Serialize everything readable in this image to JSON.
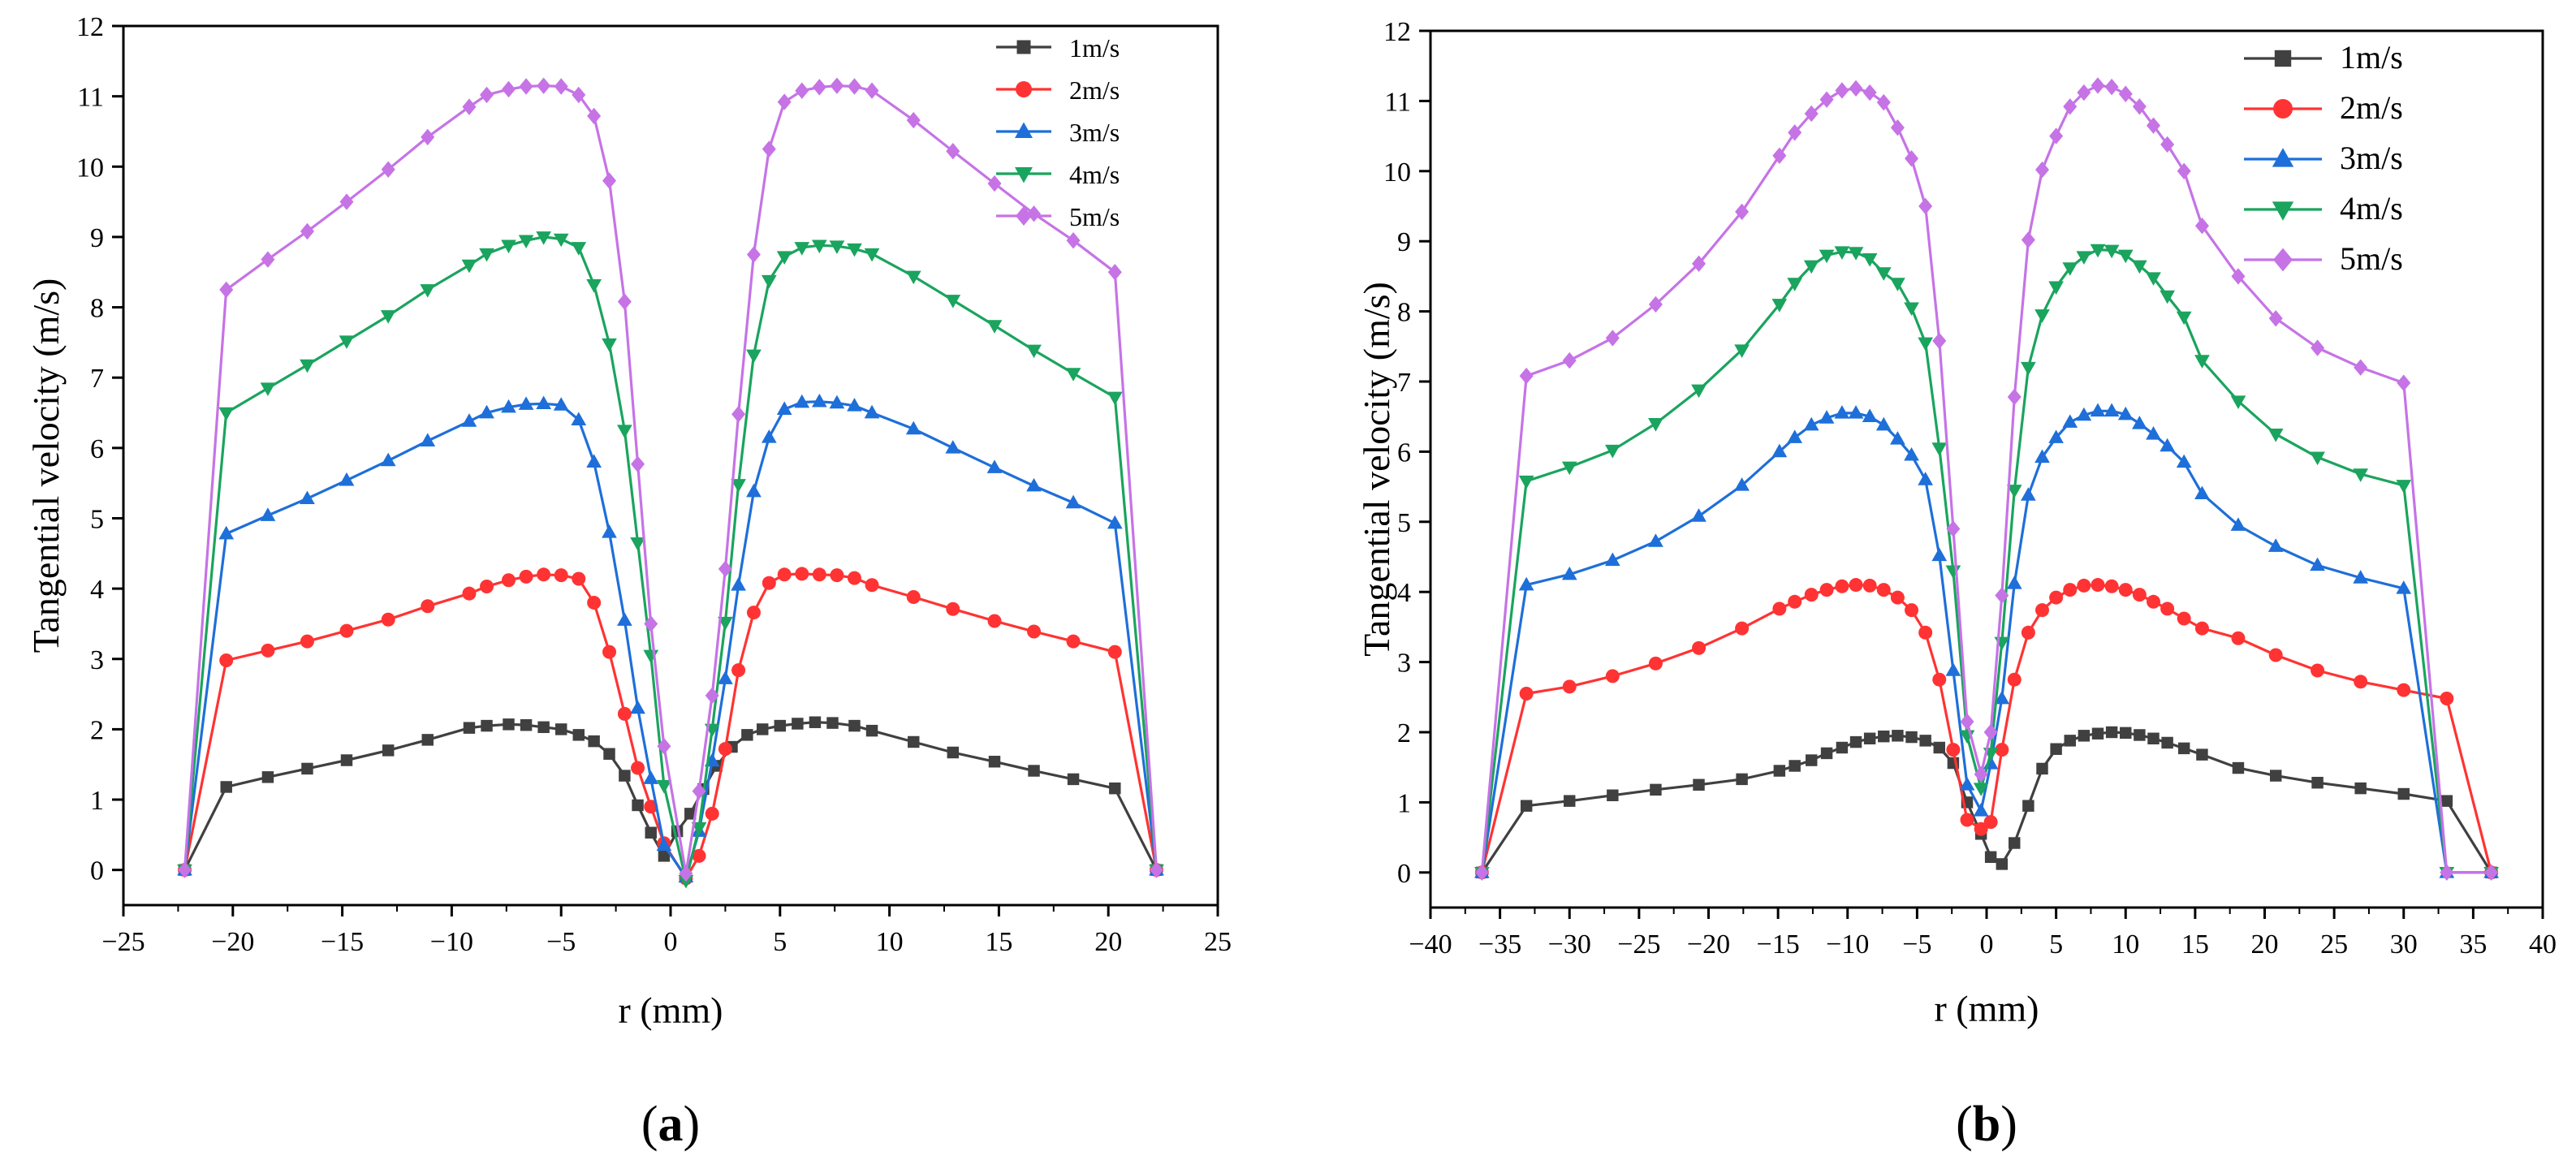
{
  "chart_data": [
    {
      "type": "line",
      "panel_label": "(a)",
      "panel_letter": "a",
      "xlabel": "r (mm)",
      "ylabel": "Tangential velocity (m/s)",
      "xlim": [
        -25,
        25
      ],
      "ylim": [
        -0.5,
        12
      ],
      "xticks": [
        -25,
        -20,
        -15,
        -10,
        -5,
        0,
        5,
        10,
        15,
        20,
        25
      ],
      "yticks": [
        0,
        1,
        2,
        3,
        4,
        5,
        6,
        7,
        8,
        9,
        10,
        11,
        12
      ],
      "legend_position": "top-right",
      "series": [
        {
          "name": "1m/s",
          "color": "#404040",
          "marker": "square",
          "x": [
            -22.2,
            -20.3,
            -18.4,
            -16.6,
            -14.8,
            -12.9,
            -11.1,
            -9.2,
            -8.4,
            -7.4,
            -6.6,
            -5.8,
            -5.0,
            -4.2,
            -3.5,
            -2.8,
            -2.1,
            -1.5,
            -0.9,
            -0.3,
            0.3,
            0.9,
            1.5,
            2.1,
            2.8,
            3.5,
            4.2,
            5.0,
            5.8,
            6.6,
            7.4,
            8.4,
            9.2,
            11.1,
            12.9,
            14.8,
            16.6,
            18.4,
            20.3,
            22.2
          ],
          "y": [
            0,
            1.18,
            1.32,
            1.44,
            1.56,
            1.7,
            1.85,
            2.02,
            2.05,
            2.07,
            2.06,
            2.03,
            2.0,
            1.92,
            1.83,
            1.65,
            1.34,
            0.92,
            0.53,
            0.2,
            0.55,
            0.8,
            1.15,
            1.48,
            1.75,
            1.92,
            2.0,
            2.05,
            2.08,
            2.1,
            2.09,
            2.05,
            1.98,
            1.82,
            1.67,
            1.54,
            1.41,
            1.29,
            1.16,
            0
          ]
        },
        {
          "name": "2m/s",
          "color": "#ff3333",
          "marker": "circle",
          "x": [
            -22.2,
            -20.3,
            -18.4,
            -16.6,
            -14.8,
            -12.9,
            -11.1,
            -9.2,
            -8.4,
            -7.4,
            -6.6,
            -5.8,
            -5.0,
            -4.2,
            -3.5,
            -2.8,
            -2.1,
            -1.5,
            -0.9,
            -0.3,
            0.7,
            1.3,
            1.9,
            2.5,
            3.1,
            3.8,
            4.5,
            5.2,
            6.0,
            6.8,
            7.6,
            8.4,
            9.2,
            11.1,
            12.9,
            14.8,
            16.6,
            18.4,
            20.3,
            22.2
          ],
          "y": [
            0,
            2.98,
            3.12,
            3.25,
            3.4,
            3.56,
            3.75,
            3.93,
            4.03,
            4.12,
            4.17,
            4.2,
            4.19,
            4.14,
            3.8,
            3.1,
            2.22,
            1.45,
            0.9,
            0.38,
            -0.12,
            0.2,
            0.8,
            1.72,
            2.84,
            3.66,
            4.08,
            4.2,
            4.21,
            4.2,
            4.19,
            4.15,
            4.05,
            3.88,
            3.71,
            3.54,
            3.39,
            3.25,
            3.1,
            0
          ]
        },
        {
          "name": "3m/s",
          "color": "#1e6fd9",
          "marker": "triangle-up",
          "x": [
            -22.2,
            -20.3,
            -18.4,
            -16.6,
            -14.8,
            -12.9,
            -11.1,
            -9.2,
            -8.4,
            -7.4,
            -6.6,
            -5.8,
            -5.0,
            -4.2,
            -3.5,
            -2.8,
            -2.1,
            -1.5,
            -0.9,
            -0.3,
            0.7,
            1.3,
            1.9,
            2.5,
            3.1,
            3.8,
            4.5,
            5.2,
            6.0,
            6.8,
            7.6,
            8.4,
            9.2,
            11.1,
            12.9,
            14.8,
            16.6,
            18.4,
            20.3,
            22.2
          ],
          "y": [
            0,
            4.78,
            5.04,
            5.28,
            5.54,
            5.82,
            6.1,
            6.38,
            6.5,
            6.58,
            6.62,
            6.63,
            6.61,
            6.4,
            5.8,
            4.8,
            3.55,
            2.3,
            1.3,
            0.35,
            -0.1,
            0.55,
            1.55,
            2.72,
            4.05,
            5.38,
            6.15,
            6.55,
            6.65,
            6.66,
            6.64,
            6.6,
            6.5,
            6.27,
            6.0,
            5.72,
            5.46,
            5.22,
            4.93,
            0
          ]
        },
        {
          "name": "4m/s",
          "color": "#1aa45e",
          "marker": "triangle-down",
          "x": [
            -22.2,
            -20.3,
            -18.4,
            -16.6,
            -14.8,
            -12.9,
            -11.1,
            -9.2,
            -8.4,
            -7.4,
            -6.6,
            -5.8,
            -5.0,
            -4.2,
            -3.5,
            -2.8,
            -2.1,
            -1.5,
            -0.9,
            -0.3,
            0.7,
            1.3,
            1.9,
            2.5,
            3.1,
            3.8,
            4.5,
            5.2,
            6.0,
            6.8,
            7.6,
            8.4,
            9.2,
            11.1,
            12.9,
            14.8,
            16.6,
            18.4,
            20.3,
            22.2
          ],
          "y": [
            0,
            6.5,
            6.85,
            7.18,
            7.52,
            7.88,
            8.25,
            8.6,
            8.76,
            8.88,
            8.95,
            9.0,
            8.97,
            8.85,
            8.32,
            7.48,
            6.25,
            4.65,
            3.05,
            1.2,
            -0.15,
            0.6,
            2.0,
            3.52,
            5.48,
            7.32,
            8.38,
            8.72,
            8.85,
            8.88,
            8.87,
            8.83,
            8.76,
            8.44,
            8.1,
            7.74,
            7.39,
            7.06,
            6.72,
            0
          ]
        },
        {
          "name": "5m/s",
          "color": "#c673e6",
          "marker": "diamond",
          "x": [
            -22.2,
            -20.3,
            -18.4,
            -16.6,
            -14.8,
            -12.9,
            -11.1,
            -9.2,
            -8.4,
            -7.4,
            -6.6,
            -5.8,
            -5.0,
            -4.2,
            -3.5,
            -2.8,
            -2.1,
            -1.5,
            -0.9,
            -0.3,
            0.7,
            1.3,
            1.9,
            2.5,
            3.1,
            3.8,
            4.5,
            5.2,
            6.0,
            6.8,
            7.6,
            8.4,
            9.2,
            11.1,
            12.9,
            14.8,
            16.6,
            18.4,
            20.3,
            22.2
          ],
          "y": [
            0,
            8.25,
            8.68,
            9.08,
            9.5,
            9.96,
            10.42,
            10.85,
            11.02,
            11.1,
            11.14,
            11.15,
            11.14,
            11.02,
            10.72,
            9.8,
            8.08,
            5.77,
            3.5,
            1.76,
            -0.05,
            1.12,
            2.48,
            4.28,
            6.48,
            8.75,
            10.25,
            10.92,
            11.08,
            11.13,
            11.15,
            11.14,
            11.08,
            10.66,
            10.22,
            9.76,
            9.33,
            8.95,
            8.5,
            0
          ]
        }
      ]
    },
    {
      "type": "line",
      "panel_label": "(b)",
      "panel_letter": "b",
      "xlabel": "r (mm)",
      "ylabel": "Tangential velocity (m/s)",
      "xlim": [
        -40,
        40
      ],
      "ylim": [
        -0.5,
        12
      ],
      "xticks": [
        -40,
        -35,
        -30,
        -25,
        -20,
        -15,
        -10,
        -5,
        0,
        5,
        10,
        15,
        20,
        25,
        30,
        35,
        40
      ],
      "yticks": [
        0,
        1,
        2,
        3,
        4,
        5,
        6,
        7,
        8,
        9,
        10,
        11,
        12
      ],
      "legend_position": "top-right",
      "series": [
        {
          "name": "1m/s",
          "color": "#404040",
          "marker": "square",
          "x": [
            -36.3,
            -33.1,
            -30,
            -26.9,
            -23.8,
            -20.7,
            -17.6,
            -14.9,
            -13.8,
            -12.6,
            -11.5,
            -10.4,
            -9.4,
            -8.4,
            -7.4,
            -6.4,
            -5.4,
            -4.4,
            -3.4,
            -2.4,
            -1.4,
            -0.4,
            0.3,
            1.1,
            2.0,
            3.0,
            4.0,
            5.0,
            6.0,
            7.0,
            8.0,
            9.0,
            10.0,
            11.0,
            12.0,
            13.0,
            14.2,
            15.5,
            18.1,
            20.8,
            23.8,
            26.9,
            30.0,
            33.1,
            36.3
          ],
          "y": [
            0,
            0.95,
            1.02,
            1.1,
            1.18,
            1.25,
            1.33,
            1.45,
            1.52,
            1.6,
            1.7,
            1.78,
            1.86,
            1.91,
            1.94,
            1.95,
            1.93,
            1.88,
            1.78,
            1.56,
            1.0,
            0.55,
            0.22,
            0.12,
            0.42,
            0.95,
            1.48,
            1.76,
            1.88,
            1.95,
            1.98,
            2.0,
            1.99,
            1.96,
            1.91,
            1.85,
            1.77,
            1.68,
            1.49,
            1.38,
            1.28,
            1.2,
            1.12,
            1.02,
            0
          ]
        },
        {
          "name": "2m/s",
          "color": "#ff3333",
          "marker": "circle",
          "x": [
            -36.3,
            -33.1,
            -30,
            -26.9,
            -23.8,
            -20.7,
            -17.6,
            -14.9,
            -13.8,
            -12.6,
            -11.5,
            -10.4,
            -9.4,
            -8.4,
            -7.4,
            -6.4,
            -5.4,
            -4.4,
            -3.4,
            -2.4,
            -1.4,
            -0.4,
            0.3,
            1.1,
            2.0,
            3.0,
            4.0,
            5.0,
            6.0,
            7.0,
            8.0,
            9.0,
            10.0,
            11.0,
            12.0,
            13.0,
            14.2,
            15.5,
            18.1,
            20.8,
            23.8,
            26.9,
            30.0,
            33.1,
            36.3
          ],
          "y": [
            0,
            2.55,
            2.65,
            2.8,
            2.98,
            3.2,
            3.48,
            3.76,
            3.86,
            3.96,
            4.03,
            4.08,
            4.1,
            4.09,
            4.03,
            3.92,
            3.74,
            3.42,
            2.75,
            1.75,
            0.75,
            0.62,
            0.72,
            1.75,
            2.75,
            3.42,
            3.74,
            3.92,
            4.03,
            4.09,
            4.1,
            4.08,
            4.03,
            3.96,
            3.86,
            3.76,
            3.62,
            3.48,
            3.34,
            3.1,
            2.88,
            2.72,
            2.6,
            2.48,
            0
          ]
        },
        {
          "name": "3m/s",
          "color": "#1e6fd9",
          "marker": "triangle-up",
          "x": [
            -36.3,
            -33.1,
            -30,
            -26.9,
            -23.8,
            -20.7,
            -17.6,
            -14.9,
            -13.8,
            -12.6,
            -11.5,
            -10.4,
            -9.4,
            -8.4,
            -7.4,
            -6.4,
            -5.4,
            -4.4,
            -3.4,
            -2.4,
            -1.4,
            -0.4,
            0.3,
            1.1,
            2.0,
            3.0,
            4.0,
            5.0,
            6.0,
            7.0,
            8.0,
            9.0,
            10.0,
            11.0,
            12.0,
            13.0,
            14.2,
            15.5,
            18.1,
            20.8,
            23.8,
            26.9,
            30.0,
            33.1,
            36.3
          ],
          "y": [
            0,
            4.1,
            4.25,
            4.45,
            4.72,
            5.08,
            5.52,
            6.0,
            6.2,
            6.38,
            6.48,
            6.55,
            6.55,
            6.5,
            6.38,
            6.18,
            5.95,
            5.6,
            4.52,
            2.88,
            1.25,
            0.88,
            1.55,
            2.48,
            4.12,
            5.38,
            5.92,
            6.2,
            6.42,
            6.52,
            6.58,
            6.58,
            6.53,
            6.4,
            6.25,
            6.08,
            5.85,
            5.4,
            4.95,
            4.65,
            4.38,
            4.2,
            4.05,
            0,
            0
          ]
        },
        {
          "name": "4m/s",
          "color": "#1aa45e",
          "marker": "triangle-down",
          "x": [
            -36.3,
            -33.1,
            -30,
            -26.9,
            -23.8,
            -20.7,
            -17.6,
            -14.9,
            -13.8,
            -12.6,
            -11.5,
            -10.4,
            -9.4,
            -8.4,
            -7.4,
            -6.4,
            -5.4,
            -4.4,
            -3.4,
            -2.4,
            -1.4,
            -0.4,
            0.3,
            1.1,
            2.0,
            3.0,
            4.0,
            5.0,
            6.0,
            7.0,
            8.0,
            9.0,
            10.0,
            11.0,
            12.0,
            13.0,
            14.2,
            15.5,
            18.1,
            20.8,
            23.8,
            26.9,
            30.0,
            33.1,
            36.3
          ],
          "y": [
            0,
            5.58,
            5.78,
            6.02,
            6.4,
            6.88,
            7.45,
            8.1,
            8.4,
            8.65,
            8.8,
            8.85,
            8.84,
            8.75,
            8.55,
            8.4,
            8.05,
            7.55,
            6.05,
            4.3,
            1.95,
            1.2,
            1.7,
            3.28,
            5.45,
            7.2,
            7.95,
            8.35,
            8.62,
            8.78,
            8.88,
            8.87,
            8.8,
            8.65,
            8.48,
            8.22,
            7.92,
            7.3,
            6.72,
            6.25,
            5.92,
            5.68,
            5.52,
            0,
            0
          ]
        },
        {
          "name": "5m/s",
          "color": "#c673e6",
          "marker": "diamond",
          "x": [
            -36.3,
            -33.1,
            -30,
            -26.9,
            -23.8,
            -20.7,
            -17.6,
            -14.9,
            -13.8,
            -12.6,
            -11.5,
            -10.4,
            -9.4,
            -8.4,
            -7.4,
            -6.4,
            -5.4,
            -4.4,
            -3.4,
            -2.4,
            -1.4,
            -0.4,
            0.3,
            1.1,
            2.0,
            3.0,
            4.0,
            5.0,
            6.0,
            7.0,
            8.0,
            9.0,
            10.0,
            11.0,
            12.0,
            13.0,
            14.2,
            15.5,
            18.1,
            20.8,
            23.8,
            26.9,
            30.0,
            33.1,
            36.3
          ],
          "y": [
            0,
            7.08,
            7.3,
            7.62,
            8.1,
            8.68,
            9.42,
            10.22,
            10.55,
            10.82,
            11.02,
            11.15,
            11.18,
            11.12,
            10.98,
            10.62,
            10.18,
            9.5,
            7.58,
            4.9,
            2.15,
            1.4,
            2.0,
            3.95,
            6.78,
            9.02,
            10.02,
            10.5,
            10.92,
            11.12,
            11.22,
            11.2,
            11.1,
            10.92,
            10.65,
            10.38,
            10.0,
            9.22,
            8.5,
            7.9,
            7.48,
            7.2,
            6.98,
            0,
            0
          ]
        }
      ]
    }
  ]
}
